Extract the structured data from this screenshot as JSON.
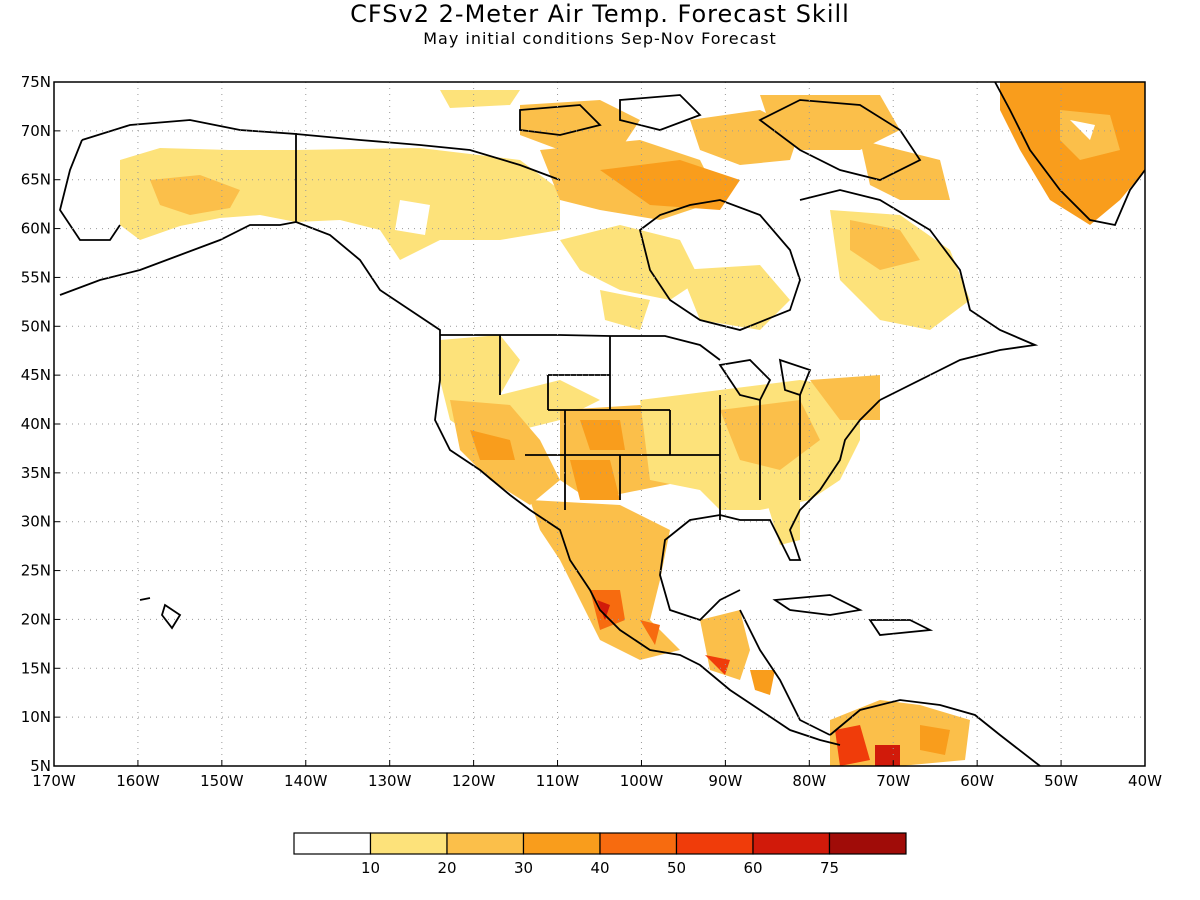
{
  "title": "CFSv2 2-Meter Air Temp. Forecast Skill",
  "subtitle": "May initial conditions  Sep-Nov Forecast",
  "map": {
    "lon_range": [
      -170,
      -40
    ],
    "lat_range": [
      5,
      75
    ],
    "lat_labels": [
      "75N",
      "70N",
      "65N",
      "60N",
      "55N",
      "50N",
      "45N",
      "40N",
      "35N",
      "30N",
      "25N",
      "20N",
      "15N",
      "10N",
      "5N"
    ],
    "lon_labels": [
      "170W",
      "160W",
      "150W",
      "140W",
      "130W",
      "120W",
      "110W",
      "100W",
      "90W",
      "80W",
      "70W",
      "60W",
      "50W",
      "40W"
    ],
    "grid": true,
    "grid_style": "dotted",
    "land_outline_color": "#000000"
  },
  "legend": {
    "labels": [
      "10",
      "20",
      "30",
      "40",
      "50",
      "60",
      "75"
    ],
    "colors": [
      "#ffffff",
      "#fde27a",
      "#fbbf4a",
      "#f99d1c",
      "#f76b0f",
      "#f03c0a",
      "#d11a0a",
      "#a00c08"
    ]
  }
}
